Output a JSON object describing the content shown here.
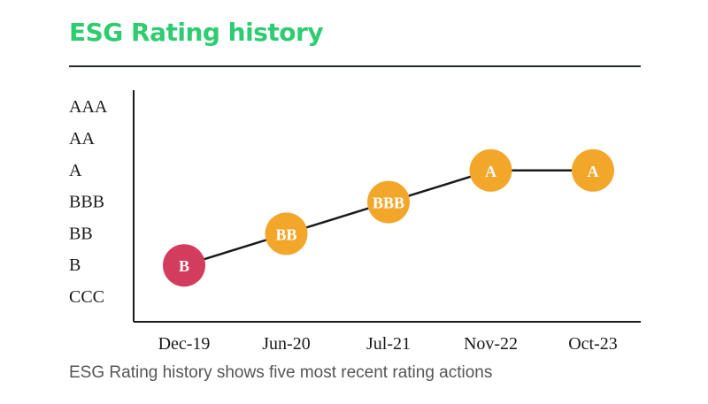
{
  "header": {
    "title": "ESG Rating history",
    "title_color": "#2ecc71"
  },
  "caption": {
    "text": "ESG Rating history shows five most recent rating actions",
    "color": "#555555"
  },
  "chart_data": {
    "type": "line",
    "title": "ESG Rating history",
    "xlabel": "",
    "ylabel": "",
    "y_categories": [
      "CCC",
      "B",
      "BB",
      "BBB",
      "A",
      "AA",
      "AAA"
    ],
    "x": [
      "Dec-19",
      "Jun-20",
      "Jul-21",
      "Nov-22",
      "Oct-23"
    ],
    "values": [
      "B",
      "BB",
      "BBB",
      "A",
      "A"
    ],
    "grid": false,
    "legend": "none",
    "colors": {
      "line": "#1a1a1a",
      "axis": "#1a1a1a",
      "default_marker": "#f2a72b",
      "low_rating_marker": "#d33c5c"
    },
    "marker_colors": [
      "#d33c5c",
      "#f2a72b",
      "#f2a72b",
      "#f2a72b",
      "#f2a72b"
    ]
  }
}
